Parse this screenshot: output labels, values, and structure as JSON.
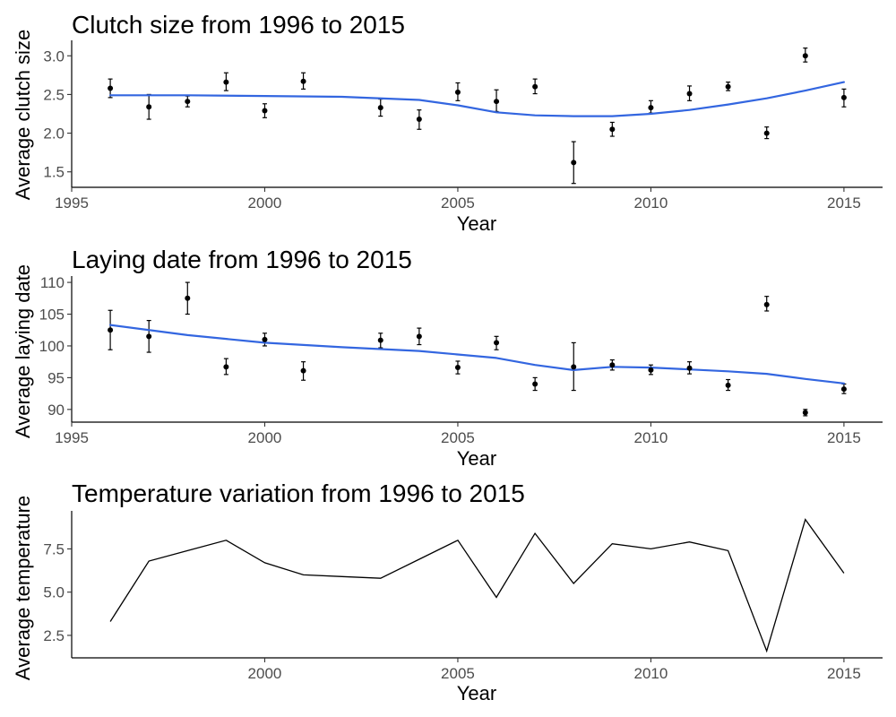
{
  "chart_data": [
    {
      "type": "scatter",
      "title": "Clutch size from 1996 to 2015",
      "xlabel": "Year",
      "ylabel": "Average clutch size",
      "xlim": [
        1995,
        2016
      ],
      "ylim": [
        1.3,
        3.2
      ],
      "xticks": [
        1995,
        2000,
        2005,
        2010,
        2015
      ],
      "yticks": [
        1.5,
        2.0,
        2.5,
        3.0
      ],
      "ytick_labels": [
        "1.5",
        "2.0",
        "2.5",
        "3.0"
      ],
      "grid": false,
      "points": [
        {
          "x": 1996,
          "y": 2.58,
          "lo": 2.46,
          "hi": 2.7
        },
        {
          "x": 1997,
          "y": 2.34,
          "lo": 2.18,
          "hi": 2.5
        },
        {
          "x": 1998,
          "y": 2.41,
          "lo": 2.34,
          "hi": 2.48
        },
        {
          "x": 1999,
          "y": 2.66,
          "lo": 2.55,
          "hi": 2.78
        },
        {
          "x": 2000,
          "y": 2.29,
          "lo": 2.2,
          "hi": 2.38
        },
        {
          "x": 2001,
          "y": 2.67,
          "lo": 2.57,
          "hi": 2.78
        },
        {
          "x": 2003,
          "y": 2.33,
          "lo": 2.22,
          "hi": 2.44
        },
        {
          "x": 2004,
          "y": 2.18,
          "lo": 2.05,
          "hi": 2.3
        },
        {
          "x": 2005,
          "y": 2.53,
          "lo": 2.42,
          "hi": 2.65
        },
        {
          "x": 2006,
          "y": 2.41,
          "lo": 2.28,
          "hi": 2.56
        },
        {
          "x": 2007,
          "y": 2.6,
          "lo": 2.51,
          "hi": 2.7
        },
        {
          "x": 2008,
          "y": 1.62,
          "lo": 1.35,
          "hi": 1.89
        },
        {
          "x": 2009,
          "y": 2.05,
          "lo": 1.96,
          "hi": 2.14
        },
        {
          "x": 2010,
          "y": 2.33,
          "lo": 2.26,
          "hi": 2.42
        },
        {
          "x": 2011,
          "y": 2.51,
          "lo": 2.42,
          "hi": 2.61
        },
        {
          "x": 2012,
          "y": 2.6,
          "lo": 2.55,
          "hi": 2.66
        },
        {
          "x": 2013,
          "y": 2.0,
          "lo": 1.93,
          "hi": 2.08
        },
        {
          "x": 2014,
          "y": 3.0,
          "lo": 2.92,
          "hi": 3.1
        },
        {
          "x": 2015,
          "y": 2.46,
          "lo": 2.34,
          "hi": 2.57
        }
      ],
      "smooth": {
        "x": [
          1996,
          1998,
          2000,
          2002,
          2004,
          2005,
          2006,
          2007,
          2008,
          2009,
          2010,
          2011,
          2012,
          2013,
          2014,
          2015
        ],
        "y": [
          2.49,
          2.49,
          2.48,
          2.47,
          2.43,
          2.36,
          2.27,
          2.23,
          2.22,
          2.22,
          2.25,
          2.3,
          2.37,
          2.45,
          2.55,
          2.66
        ]
      },
      "smooth_color": "#3366e0",
      "point_color": "#000000"
    },
    {
      "type": "scatter",
      "title": "Laying date from 1996 to 2015",
      "xlabel": "Year",
      "ylabel": "Average laying date",
      "xlim": [
        1995,
        2016
      ],
      "ylim": [
        88,
        111
      ],
      "xticks": [
        1995,
        2000,
        2005,
        2010,
        2015
      ],
      "yticks": [
        90,
        95,
        100,
        105,
        110
      ],
      "ytick_labels": [
        "90",
        "95",
        "100",
        "105",
        "110"
      ],
      "grid": false,
      "points": [
        {
          "x": 1996,
          "y": 102.5,
          "lo": 99.4,
          "hi": 105.6
        },
        {
          "x": 1997,
          "y": 101.5,
          "lo": 99.0,
          "hi": 104.0
        },
        {
          "x": 1998,
          "y": 107.5,
          "lo": 105.0,
          "hi": 110.0
        },
        {
          "x": 1999,
          "y": 96.7,
          "lo": 95.5,
          "hi": 98.0
        },
        {
          "x": 2000,
          "y": 101.0,
          "lo": 100.0,
          "hi": 102.0
        },
        {
          "x": 2001,
          "y": 96.1,
          "lo": 94.6,
          "hi": 97.5
        },
        {
          "x": 2003,
          "y": 100.9,
          "lo": 99.7,
          "hi": 102.0
        },
        {
          "x": 2004,
          "y": 101.5,
          "lo": 100.2,
          "hi": 102.8
        },
        {
          "x": 2005,
          "y": 96.6,
          "lo": 95.6,
          "hi": 97.6
        },
        {
          "x": 2006,
          "y": 100.5,
          "lo": 99.4,
          "hi": 101.5
        },
        {
          "x": 2007,
          "y": 94.0,
          "lo": 93.0,
          "hi": 95.0
        },
        {
          "x": 2008,
          "y": 96.7,
          "lo": 93.0,
          "hi": 100.5
        },
        {
          "x": 2009,
          "y": 97.0,
          "lo": 96.2,
          "hi": 97.8
        },
        {
          "x": 2010,
          "y": 96.2,
          "lo": 95.5,
          "hi": 97.0
        },
        {
          "x": 2011,
          "y": 96.5,
          "lo": 95.6,
          "hi": 97.5
        },
        {
          "x": 2012,
          "y": 93.8,
          "lo": 93.0,
          "hi": 94.7
        },
        {
          "x": 2013,
          "y": 106.5,
          "lo": 105.5,
          "hi": 107.8
        },
        {
          "x": 2014,
          "y": 89.5,
          "lo": 89.0,
          "hi": 90.0
        },
        {
          "x": 2015,
          "y": 93.2,
          "lo": 92.5,
          "hi": 94.0
        }
      ],
      "smooth": {
        "x": [
          1996,
          1998,
          2000,
          2002,
          2004,
          2006,
          2007,
          2008,
          2009,
          2010,
          2011,
          2012,
          2013,
          2014,
          2015
        ],
        "y": [
          103.3,
          101.7,
          100.5,
          99.8,
          99.2,
          98.1,
          97.0,
          96.2,
          96.7,
          96.6,
          96.3,
          96.0,
          95.6,
          94.8,
          94.1
        ]
      },
      "smooth_color": "#3366e0",
      "point_color": "#000000"
    },
    {
      "type": "line",
      "title": "Temperature variation from 1996 to 2015",
      "xlabel": "Year",
      "ylabel": "Average temperature",
      "xlim": [
        1995,
        2016
      ],
      "ylim": [
        1.2,
        9.7
      ],
      "xticks": [
        2000,
        2005,
        2010,
        2015
      ],
      "yticks": [
        2.5,
        5.0,
        7.5
      ],
      "ytick_labels": [
        "2.5",
        "5.0",
        "7.5"
      ],
      "grid": false,
      "x": [
        1996,
        1997,
        1998,
        1999,
        2000,
        2001,
        2002,
        2003,
        2004,
        2005,
        2006,
        2007,
        2008,
        2009,
        2010,
        2011,
        2012,
        2013,
        2014,
        2015
      ],
      "y": [
        3.3,
        6.8,
        7.4,
        8.0,
        6.7,
        6.0,
        5.9,
        5.8,
        6.9,
        8.0,
        4.7,
        8.4,
        5.5,
        7.8,
        7.5,
        7.9,
        7.4,
        1.6,
        9.2,
        6.1
      ],
      "line_color": "#000000"
    }
  ]
}
